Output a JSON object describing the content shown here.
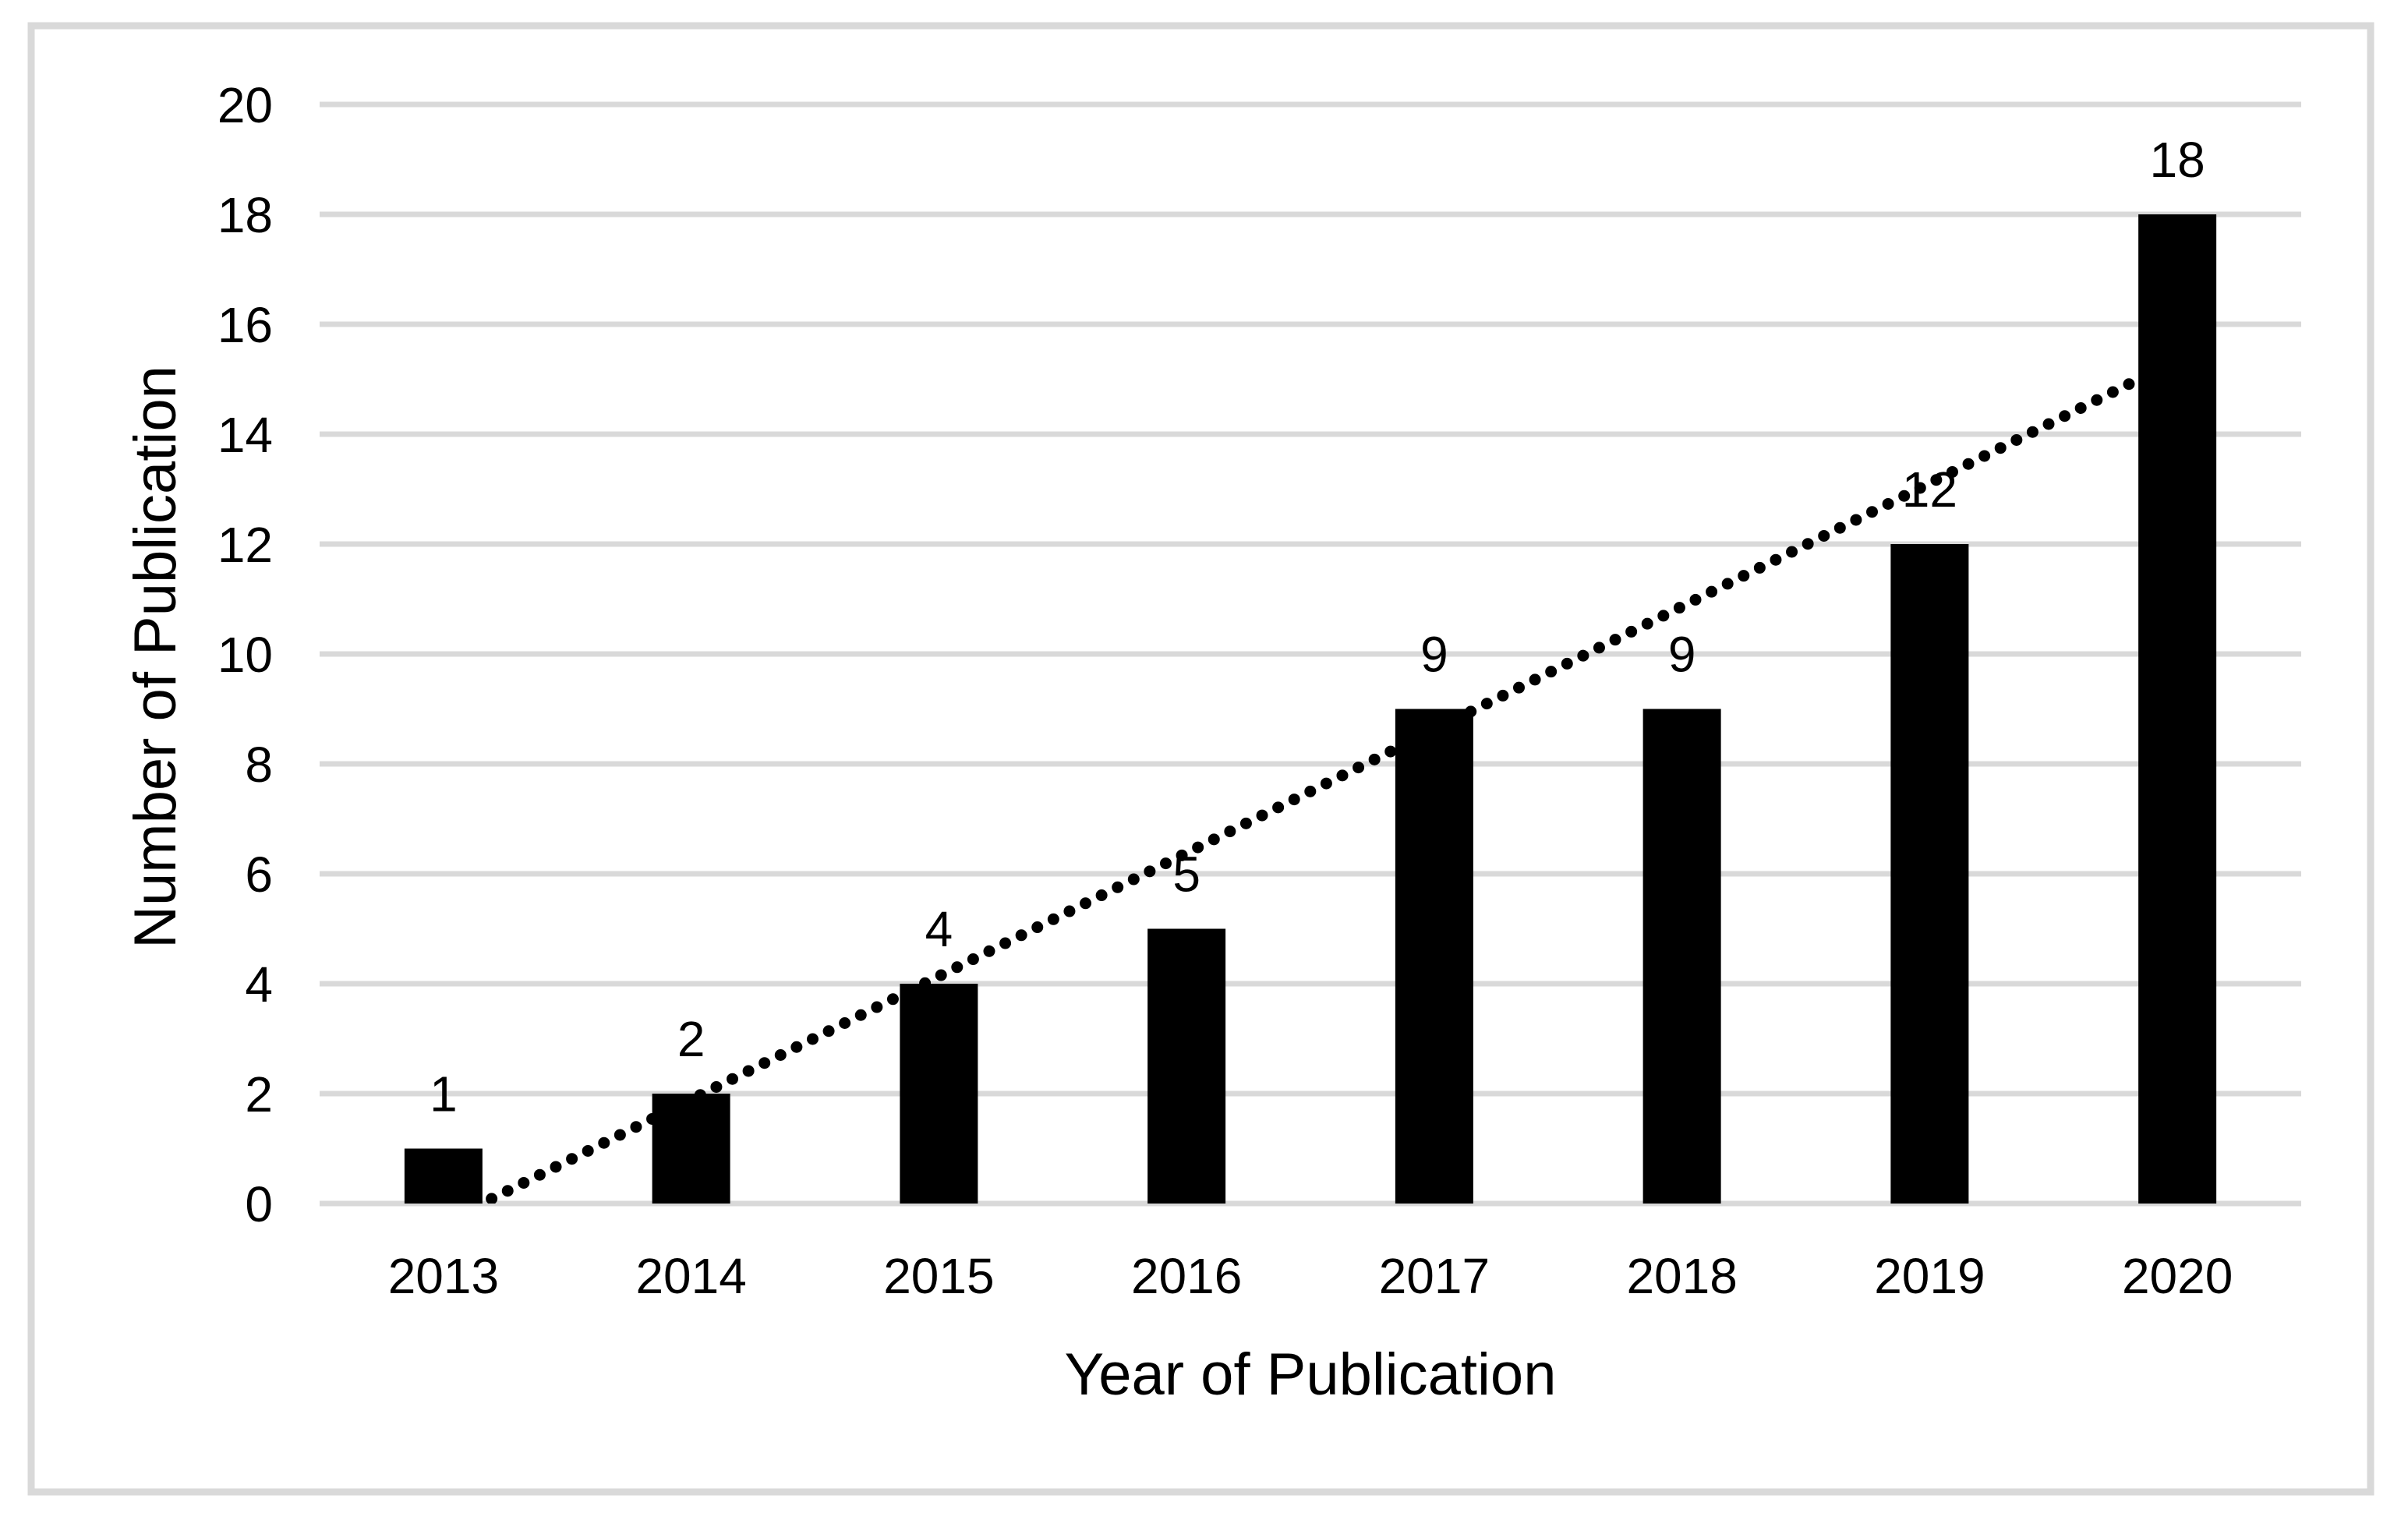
{
  "figure": {
    "background_color": "#ffffff",
    "frame_border_color": "#d9d9d9"
  },
  "chart_data": {
    "type": "bar",
    "title": "",
    "categories": [
      "2013",
      "2014",
      "2015",
      "2016",
      "2017",
      "2018",
      "2019",
      "2020"
    ],
    "values": [
      1,
      2,
      4,
      5,
      9,
      9,
      12,
      18
    ],
    "xlabel": "Year of Publication",
    "ylabel": "Number of Publication",
    "ylim": [
      0,
      20
    ],
    "yticks": [
      0,
      2,
      4,
      6,
      8,
      10,
      12,
      14,
      16,
      18,
      20
    ],
    "grid": true,
    "legend_position": "none",
    "data_labels_shown": true,
    "bar_color": "#000000",
    "gridline_color": "#d9d9d9",
    "text_color": "#000000",
    "trendline": {
      "type": "linear",
      "style": "dotted",
      "color": "#000000",
      "start": {
        "category_index": 0,
        "value": -0.35
      },
      "end": {
        "category_index": 7,
        "value": 15.35
      }
    }
  }
}
